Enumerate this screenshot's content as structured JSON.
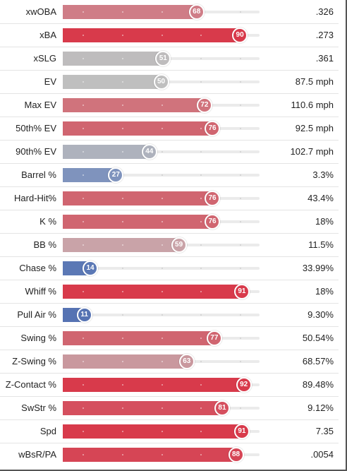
{
  "chart_data": {
    "type": "bar",
    "scale": [
      0,
      100
    ],
    "rows": [
      {
        "label": "xwOBA",
        "percentile": 68,
        "value": ".326",
        "color": "#cf7d87"
      },
      {
        "label": "xBA",
        "percentile": 90,
        "value": ".273",
        "color": "#d83a4b"
      },
      {
        "label": "xSLG",
        "percentile": 51,
        "value": ".361",
        "color": "#bebcbd"
      },
      {
        "label": "EV",
        "percentile": 50,
        "value": "87.5 mph",
        "color": "#bfbfbf"
      },
      {
        "label": "Max EV",
        "percentile": 72,
        "value": "110.6 mph",
        "color": "#d0737c"
      },
      {
        "label": "50th% EV",
        "percentile": 76,
        "value": "92.5 mph",
        "color": "#d06570"
      },
      {
        "label": "90th% EV",
        "percentile": 44,
        "value": "102.7 mph",
        "color": "#aeb2bd"
      },
      {
        "label": "Barrel %",
        "percentile": 27,
        "value": "3.3%",
        "color": "#7f93bd"
      },
      {
        "label": "Hard-Hit%",
        "percentile": 76,
        "value": "43.4%",
        "color": "#d06570"
      },
      {
        "label": "K %",
        "percentile": 76,
        "value": "18%",
        "color": "#d06570"
      },
      {
        "label": "BB %",
        "percentile": 59,
        "value": "11.5%",
        "color": "#c9a3a8"
      },
      {
        "label": "Chase %",
        "percentile": 14,
        "value": "33.99%",
        "color": "#5b78b5"
      },
      {
        "label": "Whiff %",
        "percentile": 91,
        "value": "18%",
        "color": "#d83a4b"
      },
      {
        "label": "Pull Air %",
        "percentile": 11,
        "value": "9.30%",
        "color": "#5673b3"
      },
      {
        "label": "Swing %",
        "percentile": 77,
        "value": "50.54%",
        "color": "#d06570"
      },
      {
        "label": "Z-Swing %",
        "percentile": 63,
        "value": "68.57%",
        "color": "#c9989e"
      },
      {
        "label": "Z-Contact %",
        "percentile": 92,
        "value": "89.48%",
        "color": "#d83a4b"
      },
      {
        "label": "SwStr %",
        "percentile": 81,
        "value": "9.12%",
        "color": "#d54f5e"
      },
      {
        "label": "Spd",
        "percentile": 91,
        "value": "7.35",
        "color": "#d83a4b"
      },
      {
        "label": "wBsR/PA",
        "percentile": 88,
        "value": ".0054",
        "color": "#d64555"
      }
    ]
  }
}
